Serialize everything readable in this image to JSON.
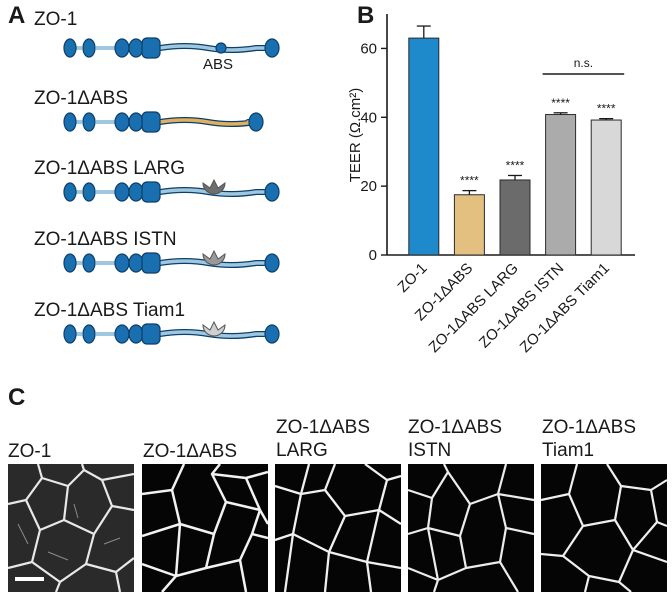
{
  "panels": {
    "a": "A",
    "b": "B",
    "c": "C"
  },
  "constructs": [
    {
      "label": "ZO-1",
      "linker": "#9fc8e0",
      "ligand": null
    },
    {
      "label": "ZO-1ΔABS",
      "linker": "#e0b060",
      "ligand": null
    },
    {
      "label": "ZO-1ΔABS LARG",
      "linker": "#9fc8e0",
      "ligand": "#6e6e6e"
    },
    {
      "label": "ZO-1ΔABS ISTN",
      "linker": "#9fc8e0",
      "ligand": "#9a9a9a"
    },
    {
      "label": "ZO-1ΔABS Tiam1",
      "linker": "#9fc8e0",
      "ligand": "#cfcfcf"
    }
  ],
  "abs_label": "ABS",
  "colors": {
    "domain_fill": "#1a6fb0",
    "domain_stroke": "#0c3f6b"
  },
  "chart_data": {
    "type": "bar",
    "ylabel": "TEER (Ω.cm²)",
    "ylim": [
      0,
      70
    ],
    "yticks": [
      0,
      20,
      40,
      60
    ],
    "categories": [
      "ZO-1",
      "ZO-1ΔABS",
      "ZO-1ΔABS LARG",
      "ZO-1ΔABS ISTN",
      "ZO-1ΔABS Tiam1"
    ],
    "values": [
      63,
      17.5,
      21.8,
      40.8,
      39.2
    ],
    "errors": [
      3.5,
      1.2,
      1.3,
      0.5,
      0.4
    ],
    "colors": [
      "#1f8acb",
      "#e3c07f",
      "#6b6b6b",
      "#ababab",
      "#d8d8d8"
    ],
    "significance": [
      "",
      "****",
      "****",
      "****",
      "****"
    ],
    "comparison": {
      "from": "ZO-1ΔABS ISTN",
      "to": "ZO-1ΔABS Tiam1",
      "label": "n.s."
    }
  },
  "micrographs": [
    {
      "label": "ZO-1"
    },
    {
      "label": "ZO-1ΔABS"
    },
    {
      "label": "ZO-1ΔABS\nLARG"
    },
    {
      "label": "ZO-1ΔABS\nISTN"
    },
    {
      "label": "ZO-1ΔABS\nTiam1"
    }
  ]
}
